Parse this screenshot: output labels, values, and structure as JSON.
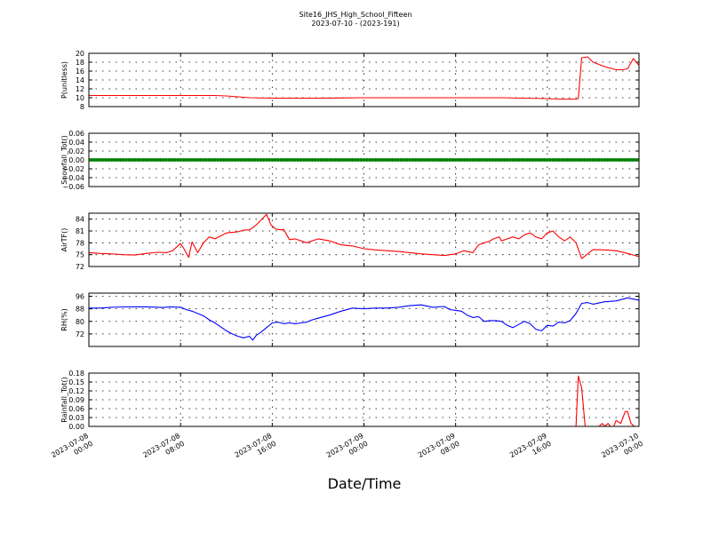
{
  "figure": {
    "title": "Site16_JHS_High_School_Fifteen",
    "subtitle": "2023-07-10 - (2023-191)",
    "xlabel": "Date/Time"
  },
  "chart_data": [
    {
      "type": "line",
      "ylabel": "P(unitless)",
      "x_ticks": [
        "2023-07-08 00:00",
        "2023-07-08 08:00",
        "2023-07-08 16:00",
        "2023-07-09 00:00",
        "2023-07-09 08:00",
        "2023-07-09 16:00",
        "2023-07-10 00:00"
      ],
      "xlim": [
        0,
        48
      ],
      "ylim": [
        8,
        20
      ],
      "y_ticks": [
        8,
        10,
        12,
        14,
        16,
        18,
        20
      ],
      "y_tick_labels": [
        "8",
        "10",
        "12",
        "14",
        "16",
        "18",
        "20"
      ],
      "color": "#ff0000",
      "series": [
        {
          "x": [
            0,
            2,
            4,
            6,
            8,
            10,
            11,
            12,
            13,
            14,
            16,
            20,
            24,
            28,
            32,
            36,
            38,
            40,
            41,
            42,
            42.5,
            42.7,
            43,
            43.5,
            44,
            45,
            46,
            46.5,
            47,
            47.5,
            48
          ],
          "values": [
            10.5,
            10.5,
            10.5,
            10.5,
            10.5,
            10.5,
            10.5,
            10.4,
            10.2,
            10.0,
            9.9,
            9.9,
            10.0,
            10.0,
            10.0,
            10.0,
            9.9,
            9.8,
            9.7,
            9.7,
            9.7,
            9.8,
            19.0,
            19.2,
            18.0,
            17.0,
            16.3,
            16.3,
            16.5,
            18.8,
            17.3
          ]
        }
      ]
    },
    {
      "type": "scatter",
      "ylabel": "Snowfall_Tot()",
      "xlim": [
        0,
        48
      ],
      "ylim": [
        -0.06,
        0.06
      ],
      "y_ticks": [
        -0.06,
        -0.04,
        -0.02,
        0.0,
        0.02,
        0.04,
        0.06
      ],
      "y_tick_labels": [
        "−0.06",
        "−0.04",
        "−0.02",
        "0.00",
        "0.02",
        "0.04",
        "0.06"
      ],
      "color": "#008000",
      "series": [
        {
          "x_start": 0,
          "x_end": 48,
          "x_step": 0.25,
          "constant": 0.0
        }
      ]
    },
    {
      "type": "line",
      "ylabel": "AirTF()",
      "xlim": [
        0,
        48
      ],
      "ylim": [
        72,
        85.5
      ],
      "y_ticks": [
        72,
        75,
        78,
        81,
        84
      ],
      "y_tick_labels": [
        "72",
        "75",
        "78",
        "81",
        "84"
      ],
      "color": "#ff0000",
      "series": [
        {
          "x": [
            0,
            1,
            2,
            3,
            4,
            5,
            6,
            6.8,
            7.3,
            8.0,
            8.3,
            8.7,
            9.0,
            9.5,
            10.0,
            10.5,
            11.0,
            12.0,
            13.0,
            13.5,
            14.0,
            14.3,
            14.7,
            15.5,
            15.9,
            16.3,
            16.7,
            17.0,
            17.5,
            18.0,
            19.0,
            20.0,
            21.0,
            22.0,
            23.0,
            24.0,
            25.0,
            26.0,
            27.0,
            28.0,
            29.0,
            30.0,
            31.0,
            31.5,
            32.0,
            32.3,
            32.7,
            33.5,
            34.0,
            35.0,
            35.3,
            35.8,
            36.0,
            37.0,
            37.5,
            38.0,
            38.5,
            39.0,
            39.5,
            40.0,
            40.5,
            41.0,
            41.5,
            42.0,
            42.5,
            43.0,
            44.0,
            45.0,
            46.0,
            47.0,
            48.0
          ],
          "values": [
            75.5,
            75.3,
            75.2,
            75.0,
            74.9,
            75.3,
            75.6,
            75.5,
            76.0,
            77.8,
            76.5,
            74.3,
            78.2,
            75.5,
            78.0,
            79.5,
            79.0,
            80.5,
            80.8,
            81.2,
            81.3,
            81.8,
            82.8,
            85.2,
            82.5,
            81.5,
            81.3,
            81.4,
            78.8,
            79.0,
            78.0,
            79.0,
            78.5,
            77.5,
            77.2,
            76.5,
            76.2,
            76.0,
            75.8,
            75.5,
            75.2,
            75.0,
            74.8,
            75.0,
            75.2,
            75.5,
            76.0,
            75.5,
            77.5,
            78.5,
            79.0,
            79.5,
            78.5,
            79.5,
            79.0,
            80.0,
            80.5,
            79.5,
            79.0,
            80.5,
            81.0,
            79.5,
            78.5,
            79.5,
            78.0,
            74.0,
            76.3,
            76.2,
            76.0,
            75.3,
            74.5
          ]
        }
      ]
    },
    {
      "type": "line",
      "ylabel": "RH(%)",
      "xlim": [
        0,
        48
      ],
      "ylim": [
        64,
        98
      ],
      "y_ticks": [
        72,
        80,
        88,
        96
      ],
      "y_tick_labels": [
        "72",
        "80",
        "88",
        "96"
      ],
      "color": "#0000ff",
      "series": [
        {
          "x": [
            0,
            1,
            2,
            3,
            4,
            5,
            6,
            6.5,
            7.0,
            8.0,
            8.5,
            9.0,
            10.0,
            10.5,
            11.0,
            11.5,
            12.0,
            12.5,
            13.0,
            13.5,
            14.0,
            14.3,
            14.6,
            15.0,
            15.5,
            16.0,
            16.5,
            17.0,
            17.5,
            18.0,
            18.5,
            19.0,
            19.5,
            20.0,
            21.0,
            22.0,
            23.0,
            24.0,
            25.0,
            26.0,
            27.0,
            28.0,
            29.0,
            30.0,
            31.0,
            31.5,
            32.0,
            32.5,
            33.0,
            33.5,
            34.0,
            34.5,
            35.0,
            35.5,
            36.0,
            36.5,
            37.0,
            37.5,
            38.0,
            38.5,
            39.0,
            39.5,
            40.0,
            40.5,
            41.0,
            41.5,
            42.0,
            42.5,
            43.0,
            43.5,
            44.0,
            45.0,
            46.0,
            47.0,
            48.0
          ],
          "values": [
            88.5,
            88.5,
            89.0,
            89.2,
            89.3,
            89.3,
            89.0,
            88.8,
            89.3,
            89.0,
            87.5,
            86.5,
            83.5,
            81.0,
            79.0,
            76.5,
            74.0,
            72.0,
            70.5,
            69.5,
            70.5,
            68.0,
            71.0,
            73.0,
            76.0,
            79.0,
            79.5,
            78.5,
            79.0,
            78.5,
            79.0,
            79.5,
            81.0,
            82.0,
            84.0,
            86.5,
            88.5,
            88.0,
            88.5,
            88.5,
            89.0,
            90.0,
            90.5,
            89.0,
            89.5,
            87.5,
            87.0,
            86.5,
            84.0,
            82.5,
            83.0,
            80.0,
            80.5,
            80.5,
            80.0,
            77.5,
            76.0,
            78.0,
            80.0,
            78.5,
            75.0,
            74.0,
            77.5,
            77.0,
            79.5,
            79.0,
            80.5,
            85.0,
            91.5,
            92.0,
            91.0,
            92.5,
            93.0,
            95.0,
            93.5
          ]
        }
      ]
    },
    {
      "type": "line",
      "ylabel": "Rainfall_Tot()",
      "xlim": [
        0,
        48
      ],
      "ylim": [
        0,
        0.18
      ],
      "y_ticks": [
        0,
        0.03,
        0.06,
        0.09,
        0.12,
        0.15,
        0.18
      ],
      "y_tick_labels": [
        "0.00",
        "0.03",
        "0.06",
        "0.09",
        "0.12",
        "0.15",
        "0.18"
      ],
      "color": "#ff0000",
      "series": [
        {
          "x": [
            0,
            42.5,
            42.7,
            43.0,
            43.3,
            43.6,
            44.0,
            44.5,
            44.8,
            45.0,
            45.3,
            45.5,
            45.8,
            46.0,
            46.4,
            46.8,
            47.0,
            47.3,
            47.6,
            48.0
          ],
          "values": [
            0,
            0,
            0.17,
            0.13,
            0,
            0,
            0,
            0,
            0.01,
            0,
            0.01,
            0,
            0,
            0.02,
            0.01,
            0.05,
            0.05,
            0.01,
            0,
            0
          ]
        }
      ]
    }
  ]
}
